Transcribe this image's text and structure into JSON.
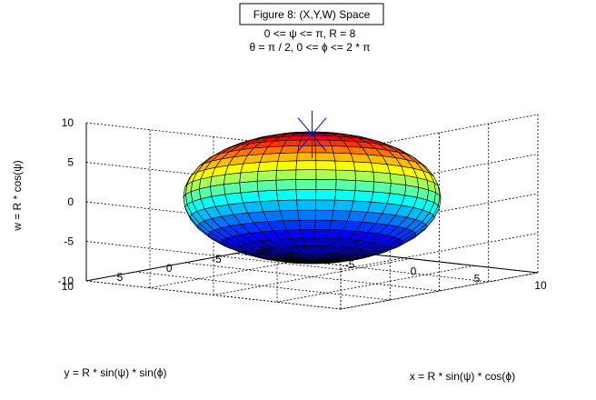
{
  "figure": {
    "title": "Figure 8: (X,Y,W) Space",
    "subtitle_line1": "0 <= ψ <= π, R = 8",
    "subtitle_line2": "θ = π / 2, 0 <= ϕ <= 2 * π"
  },
  "chart_data": {
    "type": "surface3d",
    "surface": "ellipsoid",
    "description_params": {
      "R": 8,
      "psi_range": [
        0,
        3.14159
      ],
      "phi_range": [
        0,
        6.28318
      ]
    },
    "xlabel": "x = R * sin(ψ) * cos(ϕ)",
    "ylabel": "y = R * sin(ψ) * sin(ϕ)",
    "zlabel": "w = R * cos(ψ)",
    "xlim": [
      -10,
      10
    ],
    "ylim": [
      -10,
      10
    ],
    "zlim": [
      -10,
      10
    ],
    "xticks": [
      -10,
      -5,
      0,
      5,
      10
    ],
    "yticks": [
      -10,
      -5,
      0,
      5,
      10
    ],
    "zticks": [
      -10,
      -5,
      0,
      5,
      10
    ],
    "xtick_labels": [
      "-10",
      "-5",
      "0",
      "5",
      "10"
    ],
    "ytick_labels": [
      "-10",
      "-5",
      "0",
      "5",
      "10"
    ],
    "ztick_labels": [
      "-10",
      "-5",
      "0",
      "5",
      "10"
    ],
    "grid": true,
    "colormap": "jet",
    "marker": {
      "type": "asterisk",
      "x": 0,
      "y": 0,
      "w": 8,
      "color": "#0000ff"
    }
  }
}
